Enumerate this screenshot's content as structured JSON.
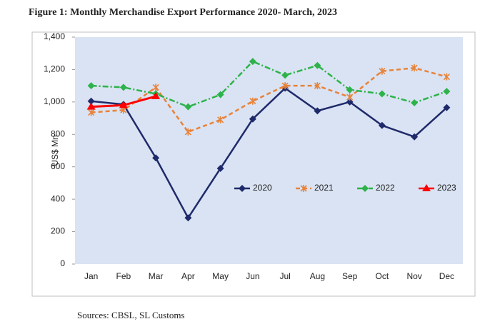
{
  "chart_data": {
    "type": "line",
    "title": "Figure 1: Monthly Merchandise Export Performance 2020- March, 2023",
    "y_label": "US$ Mn",
    "source": "Sources: CBSL, SL Customs",
    "categories": [
      "Jan",
      "Feb",
      "Mar",
      "Apr",
      "May",
      "Jun",
      "Jul",
      "Aug",
      "Sep",
      "Oct",
      "Nov",
      "Dec"
    ],
    "series": [
      {
        "name": "2020",
        "color": "#1f2a6b",
        "line_style": "solid",
        "marker": "diamond",
        "values": [
          1005,
          985,
          655,
          285,
          590,
          895,
          1085,
          945,
          1000,
          855,
          785,
          965
        ]
      },
      {
        "name": "2021",
        "color": "#e8833a",
        "line_style": "dashed",
        "marker": "cross",
        "values": [
          935,
          950,
          1090,
          815,
          890,
          1005,
          1100,
          1100,
          1030,
          1190,
          1210,
          1155
        ]
      },
      {
        "name": "2022",
        "color": "#2db34a",
        "line_style": "dashdot",
        "marker": "diamond",
        "values": [
          1100,
          1090,
          1050,
          970,
          1045,
          1250,
          1165,
          1225,
          1075,
          1050,
          995,
          1065
        ]
      },
      {
        "name": "2023",
        "color": "#ff0000",
        "line_style": "solid",
        "marker": "triangle",
        "values": [
          970,
          980,
          1035,
          null,
          null,
          null,
          null,
          null,
          null,
          null,
          null,
          null
        ]
      }
    ],
    "ylim": [
      0,
      1400
    ],
    "yticks": [
      0,
      200,
      400,
      600,
      800,
      {
        "value": 1000,
        "label": "1,000"
      },
      {
        "value": 1200,
        "label": "1,200"
      },
      {
        "value": 1400,
        "label": "1,400"
      }
    ],
    "grid": false,
    "legend": "inside"
  }
}
